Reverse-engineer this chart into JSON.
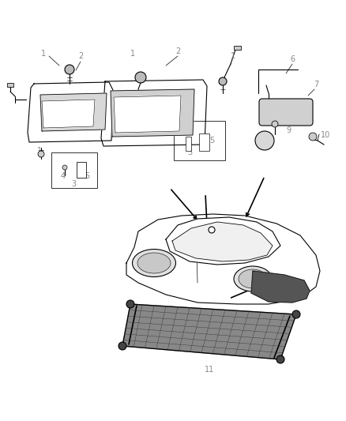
{
  "background_color": "#ffffff",
  "line_color": "#000000",
  "gray_label": "#888888",
  "fig_width": 4.38,
  "fig_height": 5.33,
  "dpi": 100
}
